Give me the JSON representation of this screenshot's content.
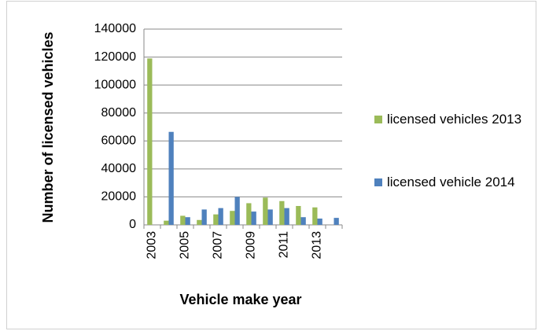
{
  "chart_data": {
    "type": "bar",
    "x_label": "Vehicle make year",
    "y_label": "Number of licensed vehicles",
    "categories": [
      "2003",
      null,
      "2005",
      null,
      "2007",
      null,
      "2009",
      null,
      "2011",
      null,
      "2013",
      null
    ],
    "series": [
      {
        "name": "licensed vehicles 2013",
        "color": "#9bbb59",
        "values": [
          119000,
          3000,
          6500,
          3500,
          7500,
          10000,
          15500,
          19500,
          17000,
          13500,
          12500,
          0
        ]
      },
      {
        "name": "licensed vehicle 2014",
        "color": "#4f81bd",
        "values": [
          0,
          66500,
          5500,
          11000,
          12000,
          20000,
          9500,
          11000,
          12000,
          5500,
          4500,
          5000
        ]
      }
    ],
    "ylim": [
      0,
      140000
    ],
    "yticks": [
      0,
      20000,
      40000,
      60000,
      80000,
      100000,
      120000,
      140000
    ],
    "grid": true,
    "legend": "right"
  }
}
